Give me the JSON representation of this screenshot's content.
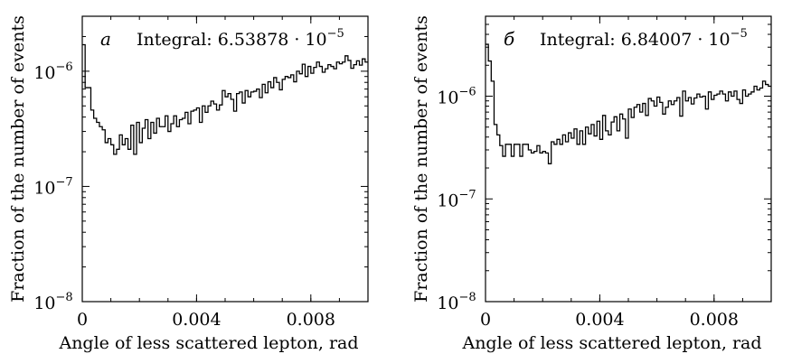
{
  "chart_data": [
    {
      "type": "step",
      "panel_label": "а",
      "annotation": "Integral: 6.53878 · 10",
      "annotation_exp": "−5",
      "xlabel": "Angle of less scattered lepton, rad",
      "ylabel": "Fraction of the number of events",
      "x_scale": "linear",
      "y_scale": "log",
      "xlim": [
        0,
        0.01
      ],
      "ylim": [
        1e-08,
        3e-06
      ],
      "x_ticks": [
        {
          "value": 0,
          "label": "0"
        },
        {
          "value": 0.004,
          "label": "0.004"
        },
        {
          "value": 0.008,
          "label": "0.008"
        }
      ],
      "y_ticks": [
        {
          "value": 1e-08,
          "base": "10",
          "exp": "−8"
        },
        {
          "value": 1e-07,
          "base": "10",
          "exp": "−7"
        },
        {
          "value": 1e-06,
          "base": "10",
          "exp": "−6"
        }
      ],
      "bin_width": 0.0001,
      "values": [
        1.7e-06,
        7.2e-07,
        7.2e-07,
        4.6e-07,
        3.9e-07,
        3.6e-07,
        3.3e-07,
        3.1e-07,
        2.4e-07,
        2.6e-07,
        2.3e-07,
        1.9e-07,
        2.1e-07,
        2.8e-07,
        2.3e-07,
        2.6e-07,
        2.1e-07,
        3.4e-07,
        1.9e-07,
        3.6e-07,
        2.4e-07,
        3.2e-07,
        3.8e-07,
        2.6e-07,
        3.6e-07,
        2.9e-07,
        3.9e-07,
        3.3e-07,
        3.3e-07,
        4.1e-07,
        3e-07,
        3.5e-07,
        4.1e-07,
        3.3e-07,
        3.8e-07,
        3.9e-07,
        4.4e-07,
        3.5e-07,
        4.5e-07,
        4.6e-07,
        4.8e-07,
        3.6e-07,
        5e-07,
        4.4e-07,
        5e-07,
        5.5e-07,
        5.2e-07,
        4.6e-07,
        5.1e-07,
        6.8e-07,
        6e-07,
        6.4e-07,
        5.7e-07,
        4.5e-07,
        6.4e-07,
        6.6e-07,
        5.3e-07,
        6.8e-07,
        6e-07,
        6.6e-07,
        6.7e-07,
        7e-07,
        5.9e-07,
        7.7e-07,
        6.5e-07,
        8.1e-07,
        7.2e-07,
        8.8e-07,
        8e-07,
        6.9e-07,
        8.5e-07,
        9e-07,
        8.8e-07,
        9.3e-07,
        8.1e-07,
        1e-06,
        9.5e-07,
        1.15e-06,
        9e-07,
        1.1e-06,
        9.6e-07,
        1.08e-06,
        1.2e-06,
        1.1e-06,
        9.8e-07,
        1.05e-06,
        1.14e-06,
        1.1e-06,
        1.05e-06,
        1.2e-06,
        1.16e-06,
        1.2e-06,
        1.36e-06,
        1.24e-06,
        1.06e-06,
        1.14e-06,
        1.23e-06,
        1.13e-06,
        1.28e-06,
        1.2e-06
      ]
    },
    {
      "type": "step",
      "panel_label": "б",
      "annotation": "Integral: 6.84007 · 10",
      "annotation_exp": "−5",
      "xlabel": "Angle of less scattered lepton, rad",
      "ylabel": "Fraction of the number of events",
      "x_scale": "linear",
      "y_scale": "log",
      "xlim": [
        0,
        0.01
      ],
      "ylim": [
        1e-08,
        6e-06
      ],
      "x_ticks": [
        {
          "value": 0,
          "label": "0"
        },
        {
          "value": 0.004,
          "label": "0.004"
        },
        {
          "value": 0.008,
          "label": "0.008"
        }
      ],
      "y_ticks": [
        {
          "value": 1e-08,
          "base": "10",
          "exp": "−8"
        },
        {
          "value": 1e-07,
          "base": "10",
          "exp": "−7"
        },
        {
          "value": 1e-06,
          "base": "10",
          "exp": "−6"
        }
      ],
      "bin_width": 0.0001,
      "values": [
        3.2e-06,
        2.2e-06,
        1.4e-06,
        5.3e-07,
        4.2e-07,
        3.3e-07,
        2.6e-07,
        3.4e-07,
        3.4e-07,
        2.6e-07,
        3.4e-07,
        3.4e-07,
        2.6e-07,
        3.4e-07,
        3.4e-07,
        3e-07,
        2.8e-07,
        2.9e-07,
        3.3e-07,
        2.8e-07,
        2.9e-07,
        2.8e-07,
        2.2e-07,
        3.6e-07,
        3.4e-07,
        3.8e-07,
        3.4e-07,
        4.2e-07,
        3.6e-07,
        4.4e-07,
        3.9e-07,
        4.8e-07,
        3.4e-07,
        4.6e-07,
        3.4e-07,
        5e-07,
        4.3e-07,
        5.3e-07,
        4.1e-07,
        5.7e-07,
        3.8e-07,
        6.5e-07,
        4.6e-07,
        4.2e-07,
        5.6e-07,
        6.3e-07,
        4.6e-07,
        6.7e-07,
        6e-07,
        3.9e-07,
        7.5e-07,
        6.2e-07,
        7.8e-07,
        8.3e-07,
        7e-07,
        8.5e-07,
        6.5e-07,
        9.5e-07,
        9e-07,
        8e-07,
        9.8e-07,
        8.7e-07,
        6.7e-07,
        7.8e-07,
        9e-07,
        8.3e-07,
        9e-07,
        9.7e-07,
        6.4e-07,
        1.12e-06,
        9e-07,
        9.7e-07,
        8.4e-07,
        9.6e-07,
        1.05e-06,
        9.8e-07,
        1e-06,
        7.5e-07,
        1.1e-06,
        9.3e-07,
        1.02e-06,
        1.05e-06,
        1.12e-06,
        1.05e-06,
        9e-07,
        1.1e-06,
        1e-06,
        1.12e-06,
        9.3e-07,
        8.5e-07,
        1.15e-06,
        1e-06,
        1.05e-06,
        1.1e-06,
        1.25e-06,
        1.15e-06,
        1.2e-06,
        1.4e-06,
        1.3e-06,
        1.25e-06
      ]
    }
  ]
}
